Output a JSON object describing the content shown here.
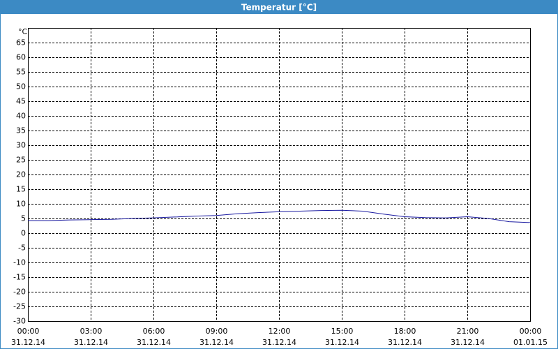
{
  "chart_data": {
    "type": "line",
    "title": "Temperatur [°C]",
    "y_label": "°C",
    "x": [
      0,
      1,
      2,
      3,
      4,
      5,
      6,
      7,
      8,
      9,
      10,
      11,
      12,
      13,
      14,
      15,
      16,
      17,
      18,
      19,
      20,
      21,
      22,
      23,
      24
    ],
    "series": [
      {
        "name": "Temperatur",
        "color": "#1a1aa0",
        "values": [
          4.3,
          4.3,
          4.5,
          4.6,
          4.7,
          5.0,
          5.2,
          5.5,
          5.8,
          6.0,
          6.6,
          7.0,
          7.3,
          7.5,
          7.7,
          7.8,
          7.5,
          6.5,
          5.6,
          5.3,
          5.2,
          5.6,
          5.0,
          3.9,
          3.6
        ]
      }
    ],
    "xlim": [
      0,
      24
    ],
    "xticks": [
      {
        "value": 0,
        "label": "00:00"
      },
      {
        "value": 3,
        "label": "03:00"
      },
      {
        "value": 6,
        "label": "06:00"
      },
      {
        "value": 9,
        "label": "09:00"
      },
      {
        "value": 12,
        "label": "12:00"
      },
      {
        "value": 15,
        "label": "15:00"
      },
      {
        "value": 18,
        "label": "18:00"
      },
      {
        "value": 21,
        "label": "21:00"
      },
      {
        "value": 24,
        "label": "00:00"
      }
    ],
    "xtick_dates": [
      "31.12.14",
      "31.12.14",
      "31.12.14",
      "31.12.14",
      "31.12.14",
      "31.12.14",
      "31.12.14",
      "31.12.14",
      "01.01.15"
    ],
    "ylim": [
      -30,
      70
    ],
    "yticks": [
      -30,
      -25,
      -20,
      -15,
      -10,
      -5,
      0,
      5,
      10,
      15,
      20,
      25,
      30,
      35,
      40,
      45,
      50,
      55,
      60,
      65
    ],
    "grid": true
  }
}
